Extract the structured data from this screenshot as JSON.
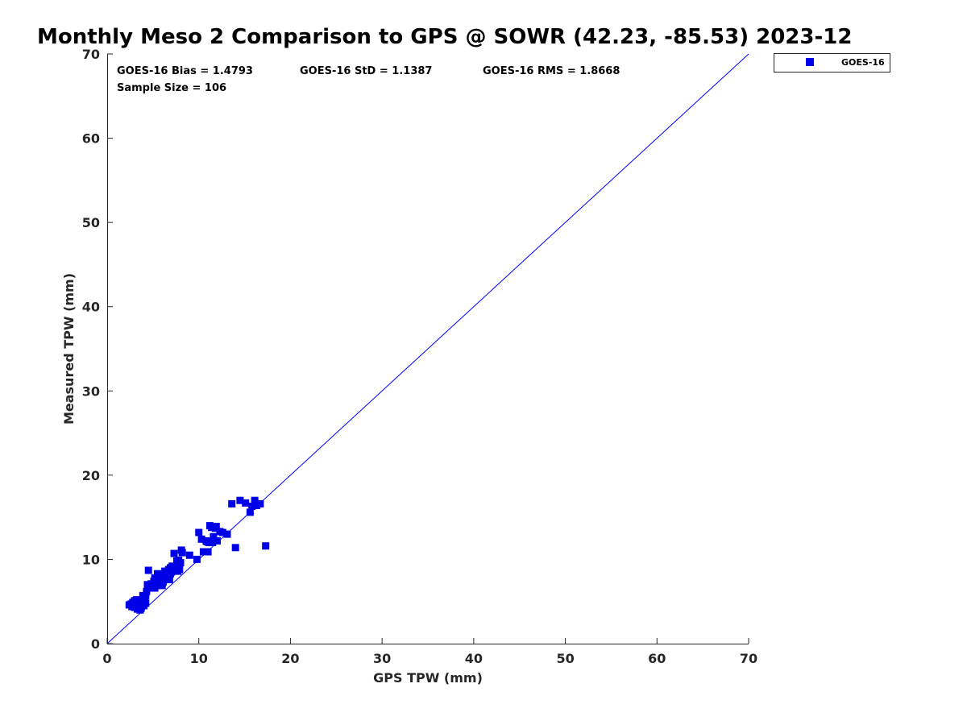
{
  "chart_data": {
    "type": "scatter",
    "title": "Monthly Meso 2 Comparison to GPS @ SOWR (42.23, -85.53) 2023-12",
    "xlabel": "GPS TPW (mm)",
    "ylabel": "Measured TPW (mm)",
    "xlim": [
      0,
      70
    ],
    "ylim": [
      0,
      70
    ],
    "xticks": [
      "0",
      "10",
      "20",
      "30",
      "40",
      "50",
      "60",
      "70"
    ],
    "yticks": [
      "0",
      "10",
      "20",
      "30",
      "40",
      "50",
      "60",
      "70"
    ],
    "grid": false,
    "legend_position": "top-right",
    "reference_line": {
      "x": [
        0,
        70
      ],
      "y": [
        0,
        70
      ],
      "color": "#0000ff"
    },
    "stats": {
      "bias": "GOES-16 Bias = 1.4793",
      "std": "GOES-16 StD = 1.1387",
      "rms": "GOES-16 RMS = 1.8668",
      "sample_size": "Sample Size = 106"
    },
    "series": [
      {
        "name": "GOES-16",
        "color": "#0000e6",
        "marker": "square",
        "points": [
          [
            2.4,
            4.6
          ],
          [
            2.6,
            4.7
          ],
          [
            2.8,
            4.9
          ],
          [
            2.9,
            4.5
          ],
          [
            3.0,
            5.1
          ],
          [
            3.0,
            4.3
          ],
          [
            3.1,
            4.8
          ],
          [
            3.2,
            5.2
          ],
          [
            3.3,
            4.6
          ],
          [
            3.3,
            4.1
          ],
          [
            3.4,
            5.0
          ],
          [
            3.5,
            4.4
          ],
          [
            3.6,
            4.9
          ],
          [
            3.7,
            4.2
          ],
          [
            3.8,
            5.2
          ],
          [
            3.9,
            4.7
          ],
          [
            4.0,
            4.5
          ],
          [
            4.0,
            5.4
          ],
          [
            4.1,
            5.0
          ],
          [
            4.2,
            5.7
          ],
          [
            4.2,
            4.8
          ],
          [
            4.3,
            6.2
          ],
          [
            4.4,
            6.6
          ],
          [
            4.4,
            7.0
          ],
          [
            4.5,
            8.7
          ],
          [
            4.6,
            6.8
          ],
          [
            4.8,
            7.1
          ],
          [
            5.0,
            6.9
          ],
          [
            5.1,
            7.4
          ],
          [
            5.2,
            6.6
          ],
          [
            5.3,
            7.0
          ],
          [
            5.4,
            7.7
          ],
          [
            5.5,
            8.3
          ],
          [
            5.6,
            7.2
          ],
          [
            5.7,
            6.9
          ],
          [
            5.8,
            7.5
          ],
          [
            5.9,
            7.9
          ],
          [
            6.0,
            6.9
          ],
          [
            6.1,
            7.3
          ],
          [
            6.2,
            8.1
          ],
          [
            6.3,
            8.6
          ],
          [
            6.4,
            7.7
          ],
          [
            6.5,
            8.4
          ],
          [
            6.6,
            7.9
          ],
          [
            6.7,
            8.8
          ],
          [
            6.8,
            8.2
          ],
          [
            6.9,
            9.0
          ],
          [
            7.0,
            8.5
          ],
          [
            7.1,
            9.2
          ],
          [
            7.2,
            8.7
          ],
          [
            7.3,
            10.7
          ],
          [
            7.4,
            9.1
          ],
          [
            7.5,
            8.9
          ],
          [
            7.6,
            9.8
          ],
          [
            7.7,
            8.6
          ],
          [
            7.8,
            9.4
          ],
          [
            7.9,
            8.8
          ],
          [
            8.0,
            9.6
          ],
          [
            8.1,
            11.1
          ],
          [
            8.2,
            10.8
          ],
          [
            9.0,
            10.5
          ],
          [
            9.8,
            10.0
          ],
          [
            10.0,
            13.2
          ],
          [
            10.3,
            12.4
          ],
          [
            10.5,
            10.9
          ],
          [
            10.8,
            12.2
          ],
          [
            11.0,
            10.9
          ],
          [
            11.1,
            12.0
          ],
          [
            11.2,
            14.0
          ],
          [
            11.4,
            13.8
          ],
          [
            11.5,
            12.0
          ],
          [
            11.6,
            12.7
          ],
          [
            11.8,
            13.7
          ],
          [
            12.0,
            12.2
          ],
          [
            12.3,
            13.3
          ],
          [
            12.6,
            13.2
          ],
          [
            13.1,
            13.0
          ],
          [
            13.6,
            16.6
          ],
          [
            14.0,
            11.4
          ],
          [
            14.5,
            17.0
          ],
          [
            15.1,
            16.7
          ],
          [
            15.6,
            15.6
          ],
          [
            15.8,
            16.3
          ],
          [
            16.1,
            17.0
          ],
          [
            16.3,
            16.4
          ],
          [
            16.7,
            16.6
          ],
          [
            17.3,
            11.6
          ],
          [
            6.8,
            7.6
          ],
          [
            5.9,
            7.2
          ],
          [
            4.7,
            6.6
          ],
          [
            3.6,
            4.0
          ],
          [
            2.7,
            4.4
          ],
          [
            5.2,
            7.8
          ],
          [
            6.5,
            8.0
          ],
          [
            7.8,
            9.9
          ],
          [
            4.9,
            6.9
          ],
          [
            3.4,
            4.7
          ],
          [
            5.6,
            8.0
          ],
          [
            6.2,
            7.6
          ],
          [
            7.2,
            8.6
          ],
          [
            10.9,
            12.1
          ],
          [
            11.9,
            13.9
          ],
          [
            4.1,
            5.2
          ],
          [
            3.9,
            5.7
          ],
          [
            6.9,
            8.3
          ],
          [
            5.4,
            7.0
          ]
        ]
      }
    ]
  }
}
